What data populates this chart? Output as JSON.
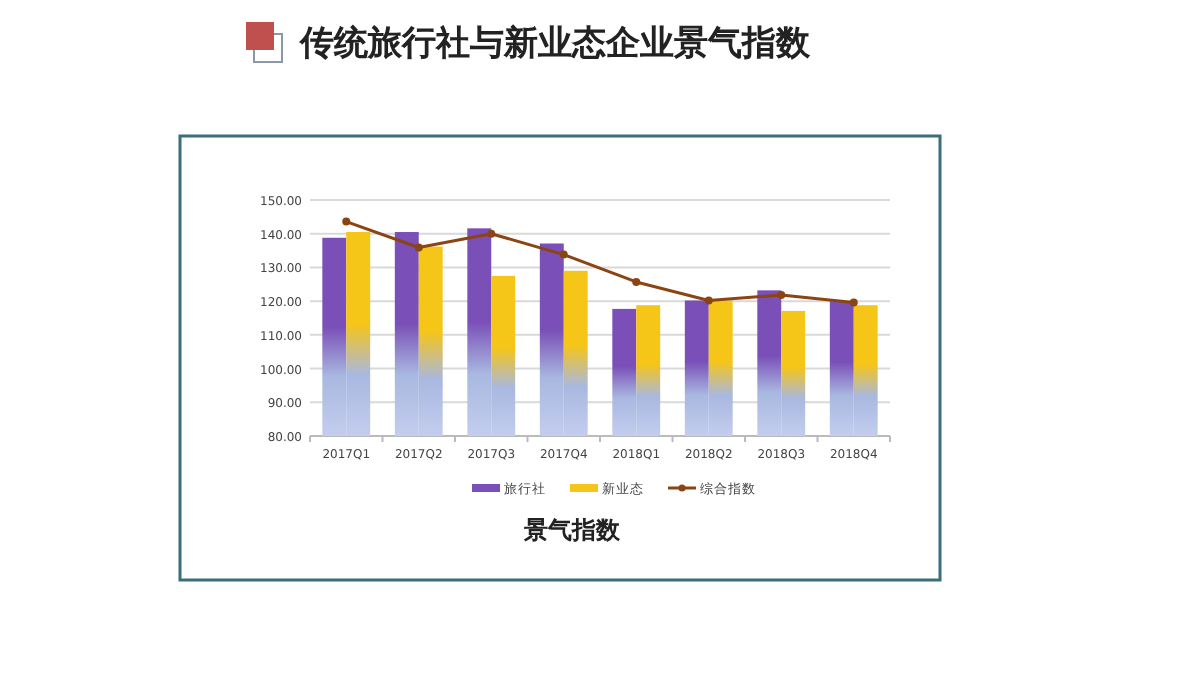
{
  "chart_data": {
    "type": "bar",
    "title": "传统旅行社与新业态企业景气指数",
    "subtitle": "景气指数",
    "categories": [
      "2017Q1",
      "2017Q2",
      "2017Q3",
      "2017Q4",
      "2018Q1",
      "2018Q2",
      "2018Q3",
      "2018Q4"
    ],
    "series": [
      {
        "name": "旅行社",
        "color": "#7a4fb8",
        "values": [
          138.8,
          140.5,
          141.6,
          137.1,
          117.7,
          120.2,
          123.2,
          120.0
        ]
      },
      {
        "name": "新业态",
        "color": "#f5c518",
        "values": [
          140.5,
          136.2,
          127.5,
          129.0,
          118.8,
          120.2,
          117.1,
          118.8
        ]
      },
      {
        "name": "综合指数",
        "type": "line",
        "color": "#8b4513",
        "marker": "circle",
        "values": [
          143.6,
          135.9,
          140.0,
          133.8,
          125.7,
          120.2,
          121.8,
          119.6
        ]
      }
    ],
    "ylim": [
      80,
      150
    ],
    "yticks": [
      {
        "value": 80,
        "label": "80.00"
      },
      {
        "value": 90,
        "label": "90.00"
      },
      {
        "value": 100,
        "label": "100.00"
      },
      {
        "value": 110,
        "label": "110.00"
      },
      {
        "value": 120,
        "label": "120.00"
      },
      {
        "value": 130,
        "label": "130.00"
      },
      {
        "value": 140,
        "label": "140.00"
      },
      {
        "value": 150,
        "label": "150.00"
      }
    ],
    "grid": "y",
    "legend": "bottom"
  }
}
